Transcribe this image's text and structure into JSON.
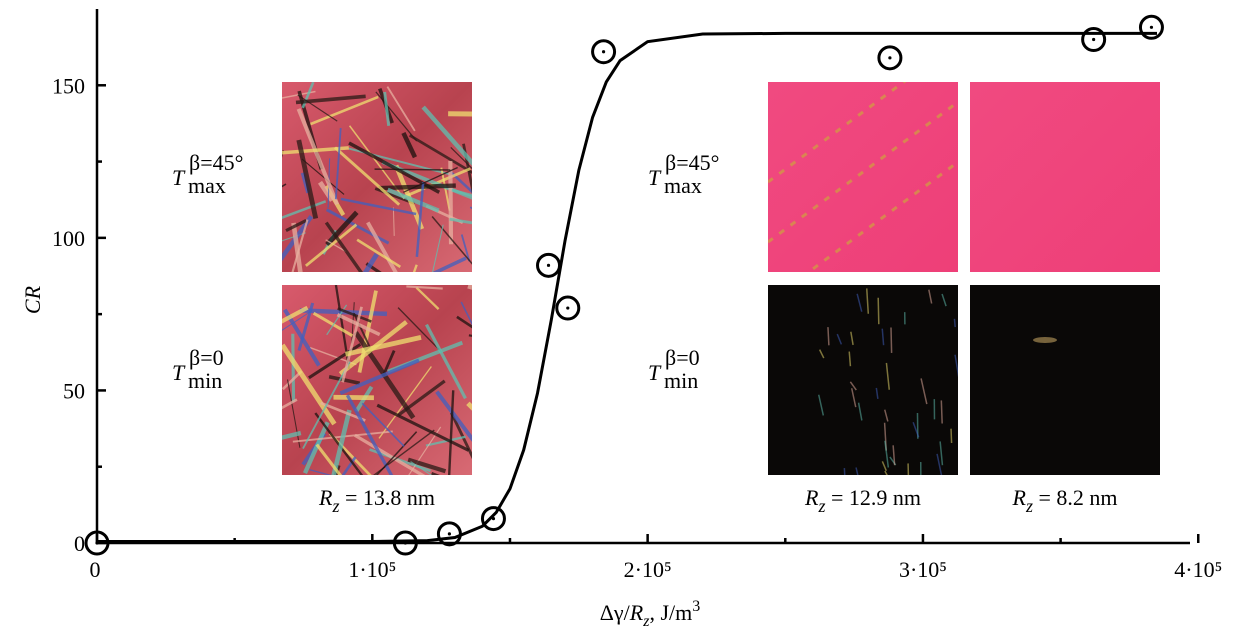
{
  "chart_data": {
    "type": "scatter",
    "xlabel": {
      "pre": "Δγ/",
      "italic": "R",
      "sub": "z",
      "post": ", J/m",
      "sup": "3"
    },
    "ylabel": "CR",
    "xlim": [
      0,
      397000
    ],
    "ylim": [
      0,
      175
    ],
    "xticks": [
      0,
      {
        "value": 100000,
        "label": "1·10⁵"
      },
      {
        "value": 200000,
        "label": "2·10⁵"
      },
      {
        "value": 300000,
        "label": "3·10⁵"
      },
      {
        "value": 400000,
        "label": "4·10⁵"
      }
    ],
    "xminor": [
      50000,
      150000,
      250000,
      350000
    ],
    "yticks": [
      0,
      50,
      100,
      150
    ],
    "yminor": [
      25,
      75,
      125
    ],
    "points": {
      "x": [
        0,
        112000,
        128000,
        144000,
        164000,
        171000,
        184000,
        288000,
        362000,
        383000
      ],
      "y": [
        0,
        0,
        3,
        8,
        91,
        77,
        161,
        159,
        165,
        169
      ]
    },
    "fit": {
      "x": [
        0,
        100000,
        120000,
        130000,
        140000,
        145000,
        150000,
        155000,
        160000,
        165000,
        170000,
        175000,
        180000,
        185000,
        190000,
        200000,
        220000,
        250000,
        300000,
        350000,
        385000
      ],
      "y": [
        0.5,
        0.5,
        0.8,
        1.8,
        5.5,
        10,
        17.8,
        30.5,
        49.1,
        73.1,
        99,
        122.1,
        139.5,
        151.1,
        158.1,
        164.3,
        166.8,
        167,
        167,
        167,
        167
      ]
    },
    "insets": [
      {
        "top": {
          "base": "T",
          "sub": "max",
          "sup": "β=45°"
        },
        "bottom": {
          "base": "T",
          "sub": "min",
          "sup": "β=0"
        },
        "captions": [
          {
            "italic": "R",
            "sub": "z",
            "rest": " = 13.8 nm"
          }
        ]
      },
      {
        "top": {
          "base": "T",
          "sub": "max",
          "sup": "β=45°"
        },
        "bottom": {
          "base": "T",
          "sub": "min",
          "sup": "β=0"
        },
        "captions": [
          {
            "italic": "R",
            "sub": "z",
            "rest": " = 12.9 nm"
          },
          {
            "italic": "R",
            "sub": "z",
            "rest": " = 8.2 nm"
          }
        ]
      }
    ]
  }
}
